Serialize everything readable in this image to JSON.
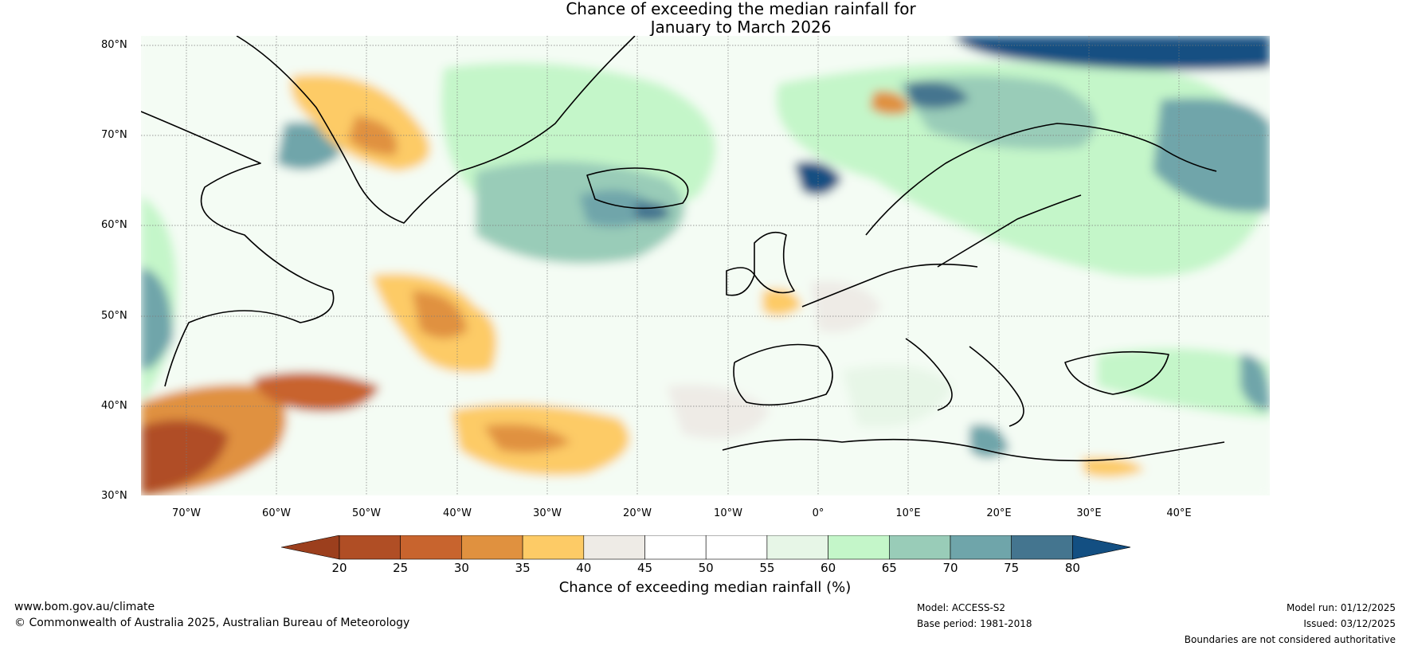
{
  "title": {
    "line1": "Chance of exceeding the median rainfall for",
    "line2": "January to March 2026"
  },
  "map": {
    "region": "North Atlantic and Europe",
    "lat_range": [
      30,
      80
    ],
    "lon_range": [
      -75,
      50
    ],
    "lat_labels": [
      "80°N",
      "70°N",
      "60°N",
      "50°N",
      "40°N",
      "30°N"
    ],
    "lon_labels": [
      "70°W",
      "60°W",
      "50°W",
      "40°W",
      "30°W",
      "20°W",
      "10°W",
      "0°",
      "10°E",
      "20°E",
      "30°E",
      "40°E"
    ]
  },
  "colorbar": {
    "title": "Chance of exceeding median rainfall (%)",
    "ticks": [
      "20",
      "25",
      "30",
      "35",
      "40",
      "45",
      "50",
      "55",
      "60",
      "65",
      "70",
      "75",
      "80"
    ],
    "colors": [
      "#9c3f1d",
      "#b04e25",
      "#c8642e",
      "#e0913f",
      "#fdcb66",
      "#eeebe6",
      "#ffffff",
      "#ffffff",
      "#e7f6e7",
      "#c4f6c9",
      "#99ccb8",
      "#6fa5aa",
      "#44758f",
      "#134f82"
    ]
  },
  "footer": {
    "website": "www.bom.gov.au/climate",
    "copyright": "© Commonwealth of Australia 2025, Australian Bureau of Meteorology",
    "model": "Model: ACCESS-S2",
    "base_period": "Base period: 1981-2018",
    "model_run": "Model run: 01/12/2025",
    "issued": "Issued: 03/12/2025",
    "disclaimer": "Boundaries are not considered authoritative"
  }
}
